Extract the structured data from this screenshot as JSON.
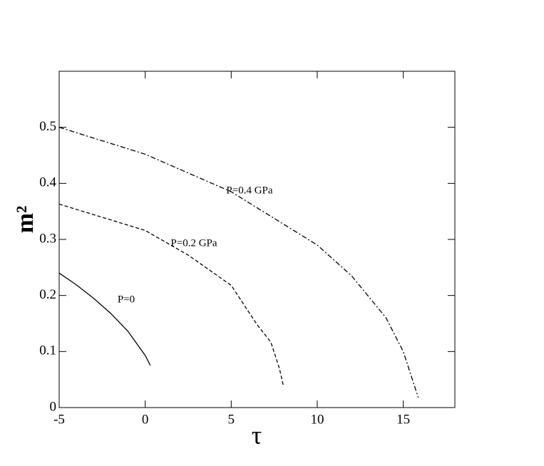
{
  "chart_data": {
    "type": "line",
    "xlabel": "τ",
    "ylabel": "m²",
    "xlim": [
      -5,
      18
    ],
    "ylim": [
      0,
      0.6
    ],
    "xticks": [
      -5,
      0,
      5,
      10,
      15
    ],
    "yticks": [
      0,
      0.1,
      0.2,
      0.3,
      0.4,
      0.5
    ],
    "series": [
      {
        "name": "P=0",
        "color": "#000000",
        "dash": "solid",
        "x": [
          -5,
          -4,
          -3,
          -2,
          -1,
          0,
          0.3
        ],
        "values": [
          0.24,
          0.219,
          0.195,
          0.168,
          0.136,
          0.093,
          0.075
        ]
      },
      {
        "name": "P=0.2 GPa",
        "color": "#000000",
        "dash": "dashed",
        "x": [
          -5,
          0,
          2.5,
          5,
          6.5,
          7.3,
          7.8,
          8.03
        ],
        "values": [
          0.363,
          0.316,
          0.272,
          0.218,
          0.148,
          0.117,
          0.07,
          0.039
        ]
      },
      {
        "name": "P=0.4 GPa",
        "color": "#000000",
        "dash": "dashdot",
        "x": [
          -5,
          0,
          5,
          10,
          12,
          14,
          15,
          15.87
        ],
        "values": [
          0.5,
          0.452,
          0.385,
          0.29,
          0.235,
          0.16,
          0.1,
          0.018
        ]
      }
    ]
  }
}
